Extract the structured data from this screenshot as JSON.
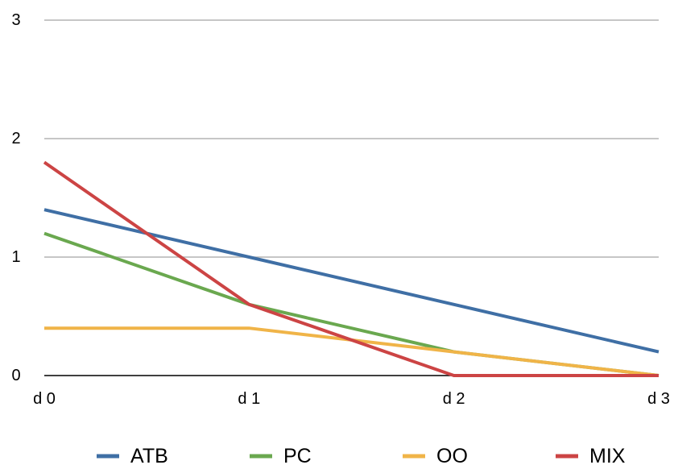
{
  "chart_data": {
    "type": "line",
    "title": "",
    "xlabel": "",
    "ylabel": "",
    "categories": [
      "d 0",
      "d 1",
      "d 2",
      "d 3"
    ],
    "y_ticks": [
      "0",
      "1",
      "2",
      "3"
    ],
    "ylim": [
      0,
      3
    ],
    "grid": true,
    "legend_position": "bottom",
    "series": [
      {
        "name": "ATB",
        "color": "#3f6fa5",
        "values": [
          1.4,
          1.0,
          0.6,
          0.2
        ]
      },
      {
        "name": "PC",
        "color": "#6aa84f",
        "values": [
          1.2,
          0.6,
          0.2,
          0.0
        ]
      },
      {
        "name": "OO",
        "color": "#f0b448",
        "values": [
          0.4,
          0.4,
          0.2,
          0.0
        ]
      },
      {
        "name": "MIX",
        "color": "#cc4444",
        "values": [
          1.8,
          0.6,
          0.0,
          0.0
        ]
      }
    ]
  }
}
